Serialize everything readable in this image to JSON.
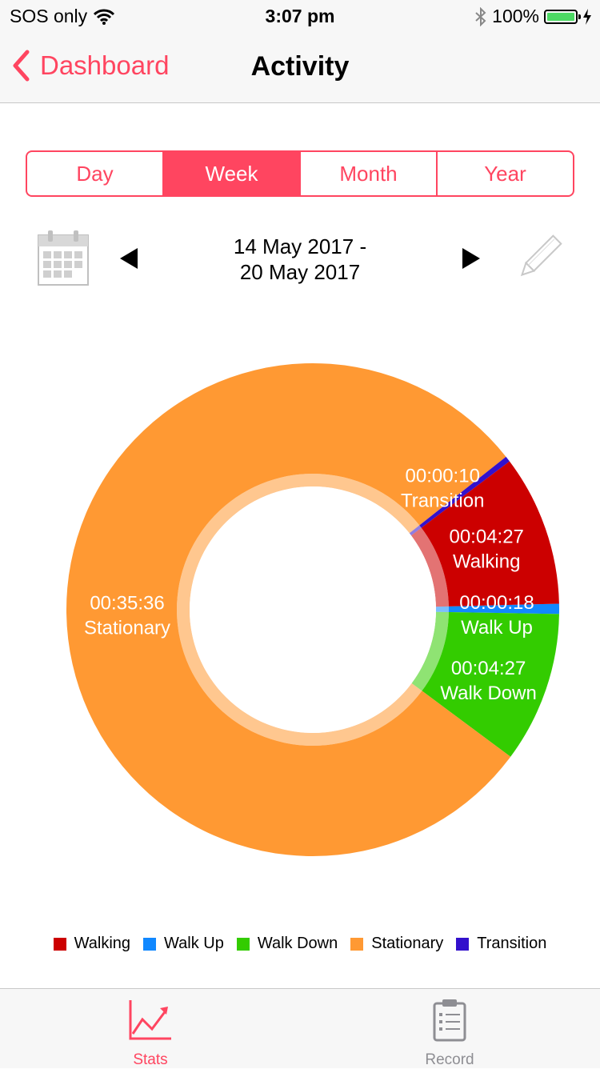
{
  "status_bar": {
    "carrier": "SOS only",
    "time": "3:07 pm",
    "battery": "100%"
  },
  "nav": {
    "back_label": "Dashboard",
    "title": "Activity"
  },
  "segments": [
    {
      "label": "Day",
      "selected": false
    },
    {
      "label": "Week",
      "selected": true
    },
    {
      "label": "Month",
      "selected": false
    },
    {
      "label": "Year",
      "selected": false
    }
  ],
  "date_range": {
    "line1": "14 May 2017 -",
    "line2": "20 May 2017"
  },
  "icons": {
    "calendar": "calendar-icon",
    "prev": "left-triangle-icon",
    "next": "right-triangle-icon",
    "edit": "pencil-icon"
  },
  "chart_data": {
    "type": "pie",
    "donut": true,
    "labels": [
      "Walking",
      "Walk Up",
      "Walk Down",
      "Stationary",
      "Transition"
    ],
    "values_seconds": [
      267,
      18,
      267,
      2136,
      10
    ],
    "display_values": [
      "00:04:27",
      "00:00:18",
      "00:04:27",
      "00:35:36",
      "00:00:10"
    ],
    "colors": [
      "#cc0000",
      "#1188ff",
      "#33cc00",
      "#ff9933",
      "#3311cc"
    ],
    "legend_position": "bottom"
  },
  "legend": [
    {
      "label": "Walking",
      "color": "#cc0000"
    },
    {
      "label": "Walk Up",
      "color": "#1188ff"
    },
    {
      "label": "Walk Down",
      "color": "#33cc00"
    },
    {
      "label": "Stationary",
      "color": "#ff9933"
    },
    {
      "label": "Transition",
      "color": "#3311cc"
    }
  ],
  "tabs": [
    {
      "label": "Stats",
      "icon": "stats-chart-icon",
      "active": true
    },
    {
      "label": "Record",
      "icon": "clipboard-icon",
      "active": false
    }
  ],
  "colors": {
    "accent": "#ff4560",
    "inactive_tab": "#8e8e93"
  }
}
